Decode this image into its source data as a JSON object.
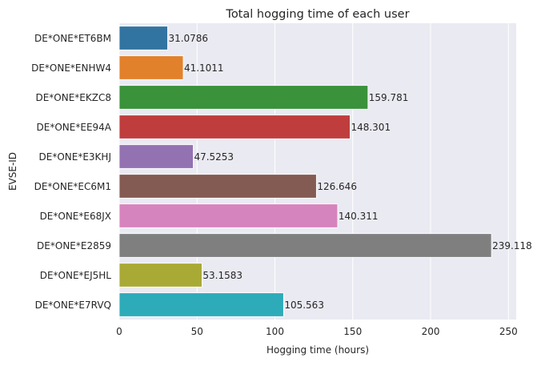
{
  "chart_data": {
    "type": "bar",
    "orientation": "horizontal",
    "title": "Total hogging time of each user",
    "xlabel": "Hogging time (hours)",
    "ylabel": "EVSE-ID",
    "xlim": [
      0,
      255
    ],
    "xticks": [
      0,
      50,
      100,
      150,
      200,
      250
    ],
    "grid": true,
    "background_color": "#eaeaf2",
    "categories": [
      "DE*ONE*ET6BM",
      "DE*ONE*ENHW4",
      "DE*ONE*EKZC8",
      "DE*ONE*EE94A",
      "DE*ONE*E3KHJ",
      "DE*ONE*EC6M1",
      "DE*ONE*E68JX",
      "DE*ONE*E2859",
      "DE*ONE*EJ5HL",
      "DE*ONE*E7RVQ"
    ],
    "values": [
      31.0786,
      41.1011,
      159.781,
      148.301,
      47.5253,
      126.646,
      140.311,
      239.118,
      53.1583,
      105.563
    ],
    "value_labels": [
      "31.0786",
      "41.1011",
      "159.781",
      "148.301",
      "47.5253",
      "126.646",
      "140.311",
      "239.118",
      "53.1583",
      "105.563"
    ],
    "colors": [
      "#3274a1",
      "#e1812c",
      "#3a923a",
      "#c03d3e",
      "#9372b2",
      "#845b53",
      "#d684bd",
      "#7f7f7f",
      "#a9aa35",
      "#2eabb8"
    ]
  }
}
